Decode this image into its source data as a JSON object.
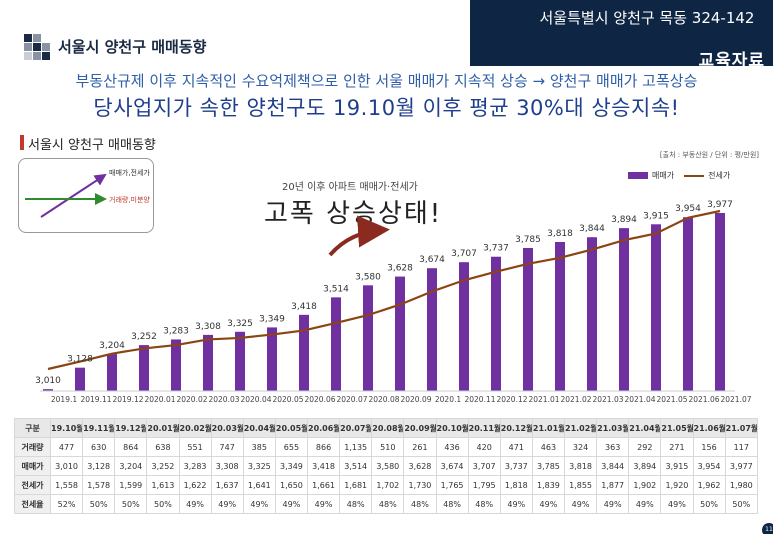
{
  "banner": {
    "text": "서울특별시 양천구 목동 324-142",
    "sub": "교육자료"
  },
  "header": {
    "title": "서울시 양천구 매매동향"
  },
  "headline": {
    "line1": "부동산규제 이후 지속적인 수요억제책으로 인한 서울 매매가 지속적 상승 → 양천구 매매가 고폭상승",
    "line2": "당사업지가 속한 양천구도 19.10월 이후 평균 30%대 상승지속!"
  },
  "section": {
    "title": "서울시 양천구 매매동향"
  },
  "source": "[출처 : 부동산원 / 단위 : 평/만원]",
  "mini_diagram": {
    "upper_label": "매매가,전세가",
    "lower_label": "거래량,미분양"
  },
  "annotation": {
    "small": "20년 이후 아파트 매매가·전세가",
    "big": "고폭 상승상태!"
  },
  "colors": {
    "bar": "#7030a0",
    "line": "#8b4513",
    "banner": "#0f2544"
  },
  "chart_data": {
    "type": "bar",
    "categories": [
      "2019.1",
      "2019.11",
      "2019.12",
      "2020.01",
      "2020.02",
      "2020.03",
      "2020.04",
      "2020.05",
      "2020.06",
      "2020.07",
      "2020.08",
      "2020.09",
      "2020.1",
      "2020.11",
      "2020.12",
      "2021.01",
      "2021.02",
      "2021.03",
      "2021.04",
      "2021.05",
      "2021.06",
      "2021.07"
    ],
    "series": [
      {
        "name": "매매가",
        "type": "bar",
        "values": [
          3010,
          3128,
          3204,
          3252,
          3283,
          3308,
          3325,
          3349,
          3418,
          3514,
          3580,
          3628,
          3674,
          3707,
          3737,
          3785,
          3818,
          3844,
          3894,
          3915,
          3954,
          3977
        ]
      },
      {
        "name": "전세가",
        "type": "line",
        "values": [
          1558,
          1578,
          1599,
          1613,
          1622,
          1637,
          1641,
          1650,
          1661,
          1681,
          1702,
          1730,
          1765,
          1795,
          1818,
          1839,
          1855,
          1877,
          1902,
          1920,
          1962,
          1980
        ]
      }
    ],
    "data_labels": [
      "3,010",
      "3,128",
      "3,204",
      "3,252",
      "3,283",
      "3,308",
      "3,325",
      "3,349",
      "3,418",
      "3,514",
      "3,580",
      "3,628",
      "3,674",
      "3,707",
      "3,737",
      "3,785",
      "3,818",
      "3,844",
      "3,894",
      "3,915",
      "3,954",
      "3,977"
    ],
    "legend": {
      "bar": "매매가",
      "line": "전세가",
      "position": "top-right"
    }
  },
  "table": {
    "columns": [
      "구분",
      "19.10월",
      "19.11월",
      "19.12월",
      "20.01월",
      "20.02월",
      "20.03월",
      "20.04월",
      "20.05월",
      "20.06월",
      "20.07월",
      "20.08월",
      "20.09월",
      "20.10월",
      "20.11월",
      "20.12월",
      "21.01월",
      "21.02월",
      "21.03월",
      "21.04월",
      "21.05월",
      "21.06월",
      "21.07월"
    ],
    "rows": [
      [
        "거래량",
        "477",
        "630",
        "864",
        "638",
        "551",
        "747",
        "385",
        "655",
        "866",
        "1,135",
        "510",
        "261",
        "436",
        "420",
        "471",
        "463",
        "324",
        "363",
        "292",
        "271",
        "156",
        "117"
      ],
      [
        "매매가",
        "3,010",
        "3,128",
        "3,204",
        "3,252",
        "3,283",
        "3,308",
        "3,325",
        "3,349",
        "3,418",
        "3,514",
        "3,580",
        "3,628",
        "3,674",
        "3,707",
        "3,737",
        "3,785",
        "3,818",
        "3,844",
        "3,894",
        "3,915",
        "3,954",
        "3,977"
      ],
      [
        "전세가",
        "1,558",
        "1,578",
        "1,599",
        "1,613",
        "1,622",
        "1,637",
        "1,641",
        "1,650",
        "1,661",
        "1,681",
        "1,702",
        "1,730",
        "1,765",
        "1,795",
        "1,818",
        "1,839",
        "1,855",
        "1,877",
        "1,902",
        "1,920",
        "1,962",
        "1,980"
      ],
      [
        "전세율",
        "52%",
        "50%",
        "50%",
        "50%",
        "49%",
        "49%",
        "49%",
        "49%",
        "49%",
        "48%",
        "48%",
        "48%",
        "48%",
        "48%",
        "49%",
        "49%",
        "49%",
        "49%",
        "49%",
        "49%",
        "50%",
        "50%"
      ]
    ]
  },
  "page_number": "11"
}
